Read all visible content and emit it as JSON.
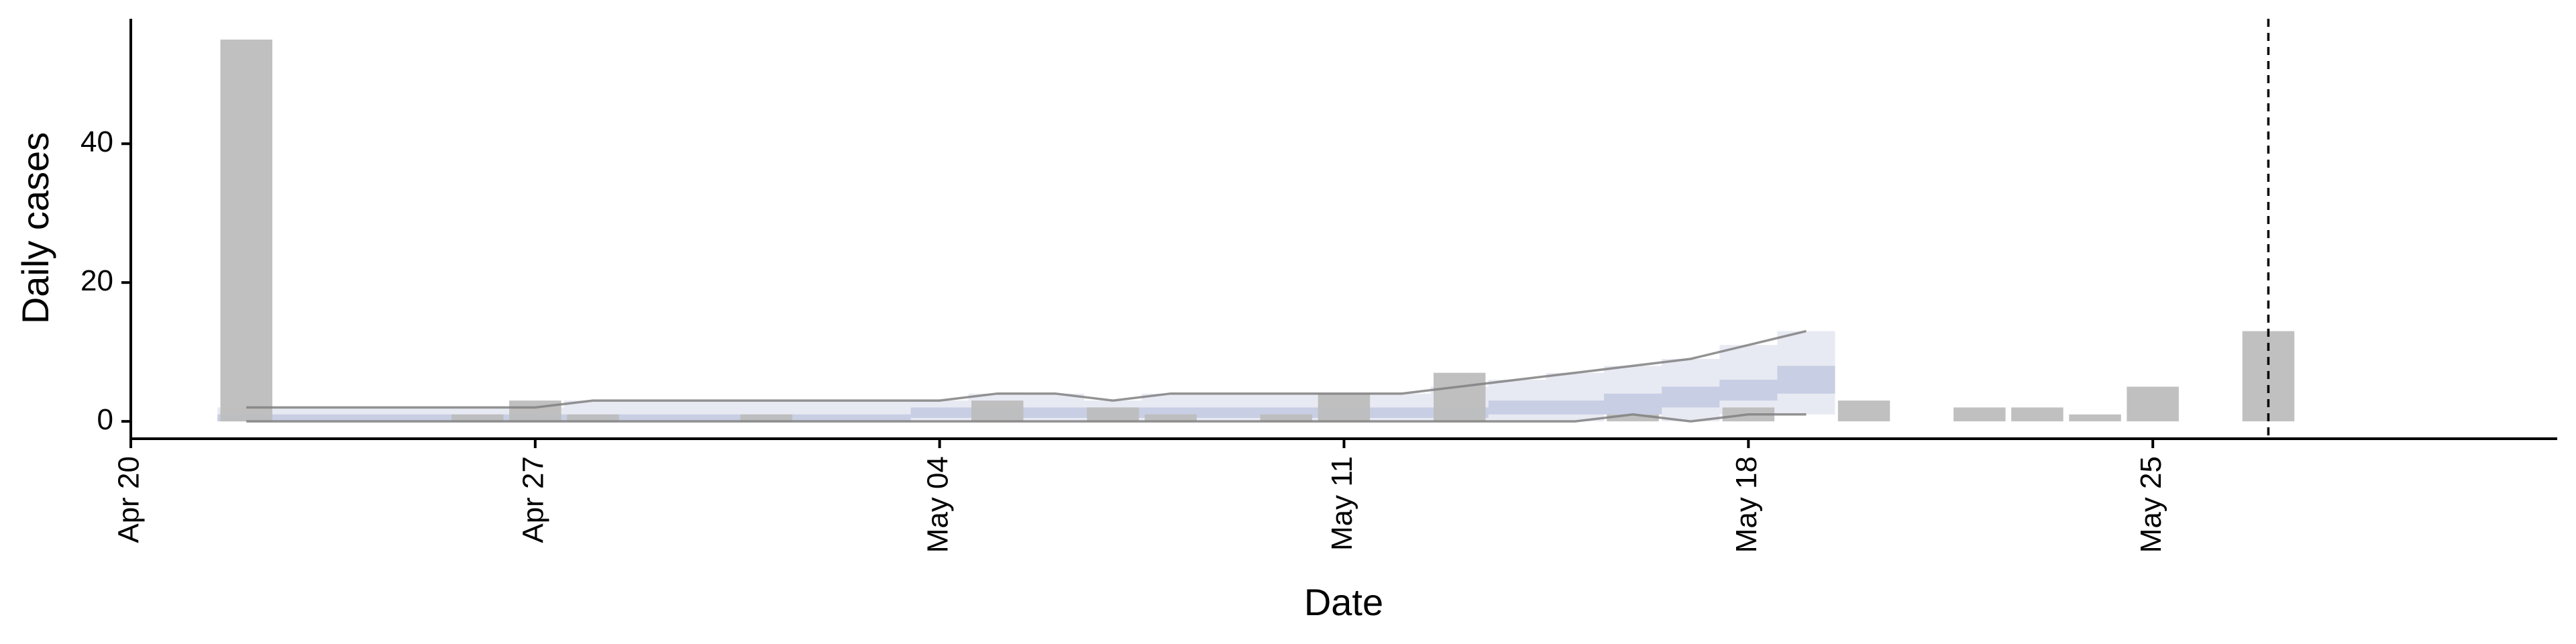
{
  "chart_data": {
    "type": "bar",
    "title": "",
    "xlabel": "Date",
    "ylabel": "Daily cases",
    "x_axis": {
      "range": [
        "2020-04-20",
        "2020-06-01"
      ],
      "ticks": [
        {
          "date": "2020-04-20",
          "label": "Apr 20"
        },
        {
          "date": "2020-04-27",
          "label": "Apr 27"
        },
        {
          "date": "2020-05-04",
          "label": "May 04"
        },
        {
          "date": "2020-05-11",
          "label": "May 11"
        },
        {
          "date": "2020-05-18",
          "label": "May 18"
        },
        {
          "date": "2020-05-25",
          "label": "May 25"
        }
      ]
    },
    "y_axis": {
      "range": [
        -2.5,
        58
      ],
      "ticks": [
        {
          "value": 0,
          "label": "0"
        },
        {
          "value": 20,
          "label": "20"
        },
        {
          "value": 40,
          "label": "40"
        }
      ]
    },
    "grid": false,
    "observed_cases": {
      "color": "#bdbdbd",
      "points": [
        {
          "date": "2020-04-22",
          "value": 55
        },
        {
          "date": "2020-04-26",
          "value": 1
        },
        {
          "date": "2020-04-27",
          "value": 3
        },
        {
          "date": "2020-04-28",
          "value": 1
        },
        {
          "date": "2020-05-01",
          "value": 1
        },
        {
          "date": "2020-05-05",
          "value": 3
        },
        {
          "date": "2020-05-07",
          "value": 2
        },
        {
          "date": "2020-05-08",
          "value": 1
        },
        {
          "date": "2020-05-10",
          "value": 1
        },
        {
          "date": "2020-05-11",
          "value": 4
        },
        {
          "date": "2020-05-13",
          "value": 7
        },
        {
          "date": "2020-05-16",
          "value": 1
        },
        {
          "date": "2020-05-18",
          "value": 2
        },
        {
          "date": "2020-05-20",
          "value": 3
        },
        {
          "date": "2020-05-22",
          "value": 2
        },
        {
          "date": "2020-05-23",
          "value": 2
        },
        {
          "date": "2020-05-24",
          "value": 1
        },
        {
          "date": "2020-05-25",
          "value": 5
        },
        {
          "date": "2020-05-27",
          "value": 13
        }
      ]
    },
    "estimate": {
      "dates": [
        "2020-04-22",
        "2020-04-23",
        "2020-04-24",
        "2020-04-25",
        "2020-04-26",
        "2020-04-27",
        "2020-04-28",
        "2020-04-29",
        "2020-04-30",
        "2020-05-01",
        "2020-05-02",
        "2020-05-03",
        "2020-05-04",
        "2020-05-05",
        "2020-05-06",
        "2020-05-07",
        "2020-05-08",
        "2020-05-09",
        "2020-05-10",
        "2020-05-11",
        "2020-05-12",
        "2020-05-13",
        "2020-05-14",
        "2020-05-15",
        "2020-05-16",
        "2020-05-17",
        "2020-05-18",
        "2020-05-19"
      ],
      "upper_90": [
        2,
        2,
        2,
        2,
        2,
        2,
        3,
        3,
        3,
        3,
        3,
        3,
        3,
        4,
        4,
        3,
        4,
        4,
        4,
        4,
        4,
        5,
        6,
        7,
        8,
        9,
        11,
        13
      ],
      "lower_90": [
        0,
        0,
        0,
        0,
        0,
        0,
        0,
        0,
        0,
        0,
        0,
        0,
        0,
        0,
        0,
        0,
        0,
        0,
        0,
        0,
        0,
        0,
        0,
        0,
        1,
        0,
        1,
        1
      ],
      "upper_50": [
        1,
        1,
        1,
        1,
        1,
        1,
        1,
        1,
        1,
        1,
        1,
        1,
        2,
        2,
        2,
        2,
        2,
        2,
        2,
        2,
        2,
        2,
        3,
        3,
        4,
        5,
        6,
        8
      ],
      "lower_50": [
        0,
        0,
        0,
        0,
        0,
        0,
        0,
        0,
        0,
        0,
        0,
        0,
        0.5,
        0.5,
        0.5,
        0.5,
        0.5,
        0.5,
        0.5,
        0.5,
        0.5,
        0.5,
        1,
        1,
        1,
        2,
        3,
        4
      ],
      "colors": {
        "band_90": "#e8eaf3",
        "band_50": "#c8cee3",
        "bound_line": "#808080"
      }
    },
    "reference_line": {
      "date": "2020-05-27",
      "style": "dashed",
      "color": "#000000"
    }
  }
}
